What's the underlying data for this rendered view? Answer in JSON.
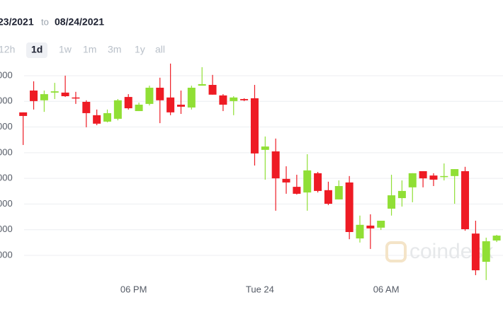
{
  "header": {
    "start_date": "23/2021",
    "separator": "to",
    "end_date": "08/24/2021"
  },
  "ranges": {
    "options": [
      "12h",
      "1d",
      "1w",
      "1m",
      "3m",
      "1y",
      "all"
    ],
    "selected_index": 1
  },
  "chart_data": {
    "type": "candlestick",
    "x": [
      0,
      1,
      2,
      3,
      4,
      5,
      6,
      7,
      8,
      9,
      10,
      11,
      12,
      13,
      14,
      15,
      16,
      17,
      18,
      19,
      20,
      21,
      22,
      23,
      24,
      25,
      26,
      27,
      28,
      29,
      30,
      31,
      32,
      33,
      34,
      35,
      36,
      37,
      38,
      39,
      40,
      41,
      42,
      43,
      44,
      45
    ],
    "open": [
      6.57,
      7.42,
      7.04,
      7.34,
      7.34,
      7.15,
      6.98,
      6.46,
      6.21,
      6.32,
      7.17,
      6.62,
      6.9,
      7.53,
      7.15,
      6.87,
      6.76,
      7.61,
      7.64,
      7.23,
      7.01,
      7.09,
      7.12,
      5.11,
      5.05,
      3.98,
      3.67,
      3.45,
      4.2,
      3.54,
      3.18,
      3.84,
      1.66,
      2.16,
      2.08,
      2.82,
      3.23,
      3.65,
      4.28,
      4.11,
      4.06,
      4.09,
      4.28,
      1.85,
      0.75,
      1.58
    ],
    "high": [
      6.57,
      7.78,
      7.42,
      7.72,
      8.0,
      7.37,
      7.04,
      6.68,
      6.68,
      7.09,
      7.28,
      6.95,
      7.61,
      7.92,
      8.47,
      7.42,
      7.61,
      8.33,
      8.03,
      7.28,
      7.2,
      7.12,
      7.64,
      5.63,
      5.55,
      4.47,
      4.14,
      4.94,
      4.25,
      3.87,
      3.92,
      4.09,
      2.55,
      2.6,
      2.35,
      4.14,
      3.92,
      4.2,
      4.28,
      4.2,
      4.58,
      4.36,
      4.45,
      2.35,
      1.69,
      1.8
    ],
    "low": [
      5.3,
      6.68,
      6.59,
      7.09,
      7.17,
      6.9,
      5.99,
      6.07,
      6.18,
      6.26,
      6.68,
      6.62,
      6.84,
      6.15,
      6.46,
      6.51,
      6.68,
      7.61,
      7.26,
      6.62,
      6.46,
      7.01,
      4.5,
      3.95,
      2.74,
      3.4,
      3.37,
      2.74,
      3.45,
      2.96,
      3.18,
      1.63,
      1.5,
      1.25,
      1.99,
      2.55,
      2.9,
      3.07,
      3.65,
      3.7,
      3.92,
      3.01,
      1.96,
      0.23,
      0.04,
      1.52
    ],
    "close": [
      6.43,
      7.01,
      7.28,
      7.39,
      7.2,
      7.12,
      6.54,
      6.13,
      6.54,
      7.04,
      6.73,
      6.87,
      7.53,
      7.04,
      6.57,
      6.79,
      7.53,
      7.67,
      7.26,
      6.87,
      7.15,
      7.04,
      4.97,
      5.24,
      4.0,
      3.84,
      3.4,
      4.31,
      3.51,
      3.01,
      3.7,
      1.91,
      2.19,
      2.05,
      2.35,
      3.34,
      3.51,
      4.2,
      4.0,
      3.95,
      4.09,
      4.36,
      2.02,
      0.42,
      1.55,
      1.77
    ],
    "up_color": "#90df35",
    "down_color": "#ee1b24",
    "xlim": [
      -2.2,
      45.6
    ],
    "ylim": [
      0,
      8.5
    ],
    "xticks": [
      {
        "value": 10.5,
        "label": "06 PM"
      },
      {
        "value": 22.5,
        "label": "Tue 24"
      },
      {
        "value": 34.5,
        "label": "06 AM"
      }
    ],
    "yticks": [
      {
        "value": 1,
        "label": "000"
      },
      {
        "value": 2,
        "label": "000"
      },
      {
        "value": 3,
        "label": "000"
      },
      {
        "value": 4,
        "label": "000"
      },
      {
        "value": 5,
        "label": "000"
      },
      {
        "value": 6,
        "label": "000"
      },
      {
        "value": 7,
        "label": "000"
      },
      {
        "value": 8,
        "label": "000"
      }
    ],
    "grid": true,
    "watermark": "coindesk"
  }
}
